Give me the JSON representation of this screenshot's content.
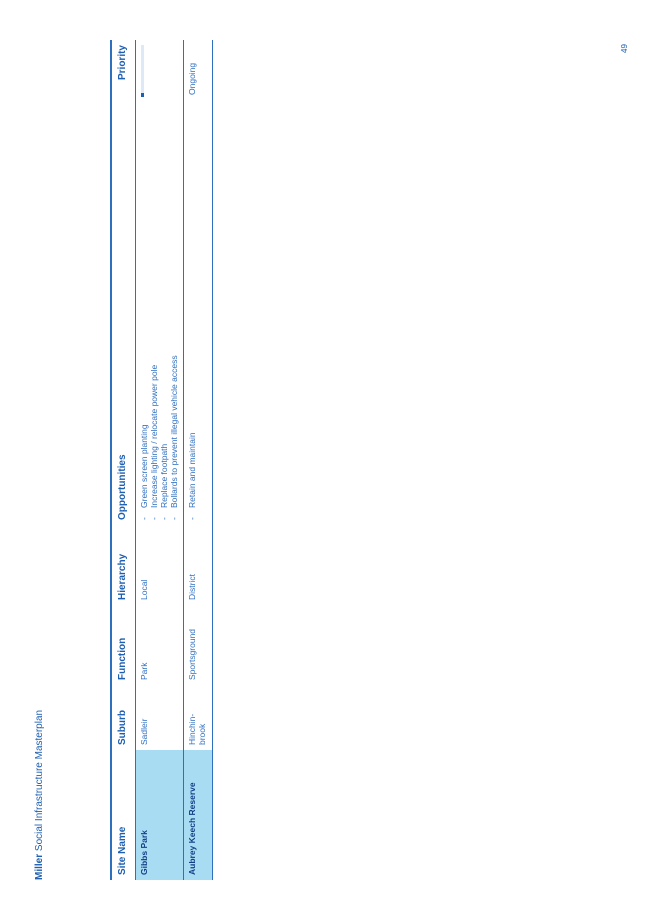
{
  "header": {
    "brand": "Miller",
    "title": "Social Infrastructure Masterplan"
  },
  "page_number": "49",
  "table": {
    "columns": [
      "Site Name",
      "Suburb",
      "Function",
      "Hierarchy",
      "Opportunities",
      "Priority"
    ],
    "rows": [
      {
        "site": "Gibbs Park",
        "suburb": "Sadleir",
        "function": "Park",
        "hierarchy": "Local",
        "opportunities": [
          "Green screen planting",
          "Increase lighting / relocate power pole",
          "Replace footpath",
          "Bollards to prevent illegal vehicle access"
        ]
      },
      {
        "site": "Aubrey Keech Reserve",
        "suburb": "Hinchin-brook",
        "function": "Sportsground",
        "hierarchy": "District",
        "opportunities": [
          "Retain and maintain"
        ],
        "priority": "Ongoing"
      }
    ]
  }
}
